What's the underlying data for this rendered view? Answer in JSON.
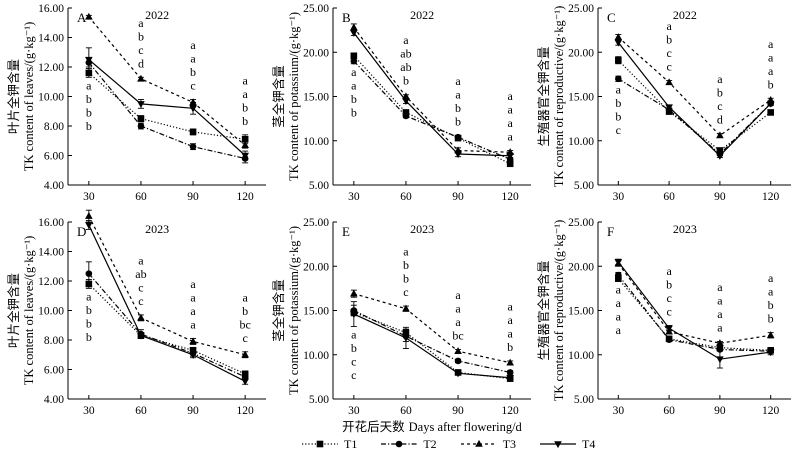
{
  "legend": {
    "items": [
      {
        "label": "T1",
        "marker": "square",
        "dash": "1,2"
      },
      {
        "label": "T2",
        "marker": "circle",
        "dash": "5,2,1,2"
      },
      {
        "label": "T3",
        "marker": "triangle-up",
        "dash": "3,3"
      },
      {
        "label": "T4",
        "marker": "triangle-down",
        "dash": ""
      }
    ]
  },
  "chart_data": [
    {
      "type": "line",
      "panel": "A",
      "title": "2022",
      "ylabel": "TK content of leaves/(g·kg⁻¹)",
      "ylabel_cn": "叶片全钾含量",
      "xlabel": "",
      "x": [
        30,
        60,
        90,
        120
      ],
      "yticks": [
        4,
        6,
        8,
        10,
        12,
        14,
        16
      ],
      "ylim": [
        4,
        16
      ],
      "series": [
        {
          "name": "T1",
          "values": [
            11.6,
            8.5,
            7.6,
            7.1
          ],
          "err": [
            0.3,
            0.2,
            0.2,
            0.3
          ]
        },
        {
          "name": "T2",
          "values": [
            12.3,
            8.0,
            6.6,
            5.8
          ],
          "err": [
            0.3,
            0.2,
            0.2,
            0.3
          ]
        },
        {
          "name": "T3",
          "values": [
            15.4,
            11.2,
            9.6,
            6.7
          ],
          "err": [
            0.1,
            0.1,
            0.2,
            0.2
          ]
        },
        {
          "name": "T4",
          "values": [
            12.5,
            9.5,
            9.2,
            6.0
          ],
          "err": [
            0.8,
            0.3,
            0.4,
            0.3
          ]
        }
      ],
      "letters": [
        [
          "a",
          "b",
          "b",
          "b"
        ],
        [
          "a",
          "b",
          "c",
          "d"
        ],
        [
          "a",
          "a",
          "b",
          "c"
        ],
        [
          "a",
          "a",
          "b",
          "b"
        ]
      ]
    },
    {
      "type": "line",
      "panel": "B",
      "title": "2022",
      "ylabel": "TK content of potassium/(g·kg⁻¹)",
      "ylabel_cn": "茎全钾含量",
      "xlabel": "",
      "x": [
        30,
        60,
        90,
        120
      ],
      "yticks": [
        5,
        10,
        15,
        20,
        25
      ],
      "ylim": [
        5,
        25
      ],
      "series": [
        {
          "name": "T1",
          "values": [
            19.6,
            13.2,
            10.3,
            7.4
          ],
          "err": [
            0.3,
            0.2,
            0.2,
            0.2
          ]
        },
        {
          "name": "T2",
          "values": [
            19.0,
            12.8,
            10.4,
            7.9
          ],
          "err": [
            0.3,
            0.2,
            0.2,
            0.2
          ]
        },
        {
          "name": "T3",
          "values": [
            22.8,
            15.0,
            8.9,
            8.7
          ],
          "err": [
            0.4,
            0.2,
            0.3,
            0.2
          ]
        },
        {
          "name": "T4",
          "values": [
            22.2,
            14.5,
            8.5,
            8.3
          ],
          "err": [
            0.3,
            0.3,
            0.3,
            0.3
          ]
        }
      ],
      "letters": [
        [
          "a",
          "a",
          "b",
          "b"
        ],
        [
          "a",
          "ab",
          "ab",
          "b"
        ],
        [
          "a",
          "a",
          "b",
          "b"
        ],
        [
          "a",
          "a",
          "a",
          "a"
        ]
      ]
    },
    {
      "type": "line",
      "panel": "C",
      "title": "2022",
      "ylabel": "TK content of reproductive/(g·kg⁻¹)",
      "ylabel_cn": "生殖器官全钾含量",
      "xlabel": "",
      "x": [
        30,
        60,
        90,
        120
      ],
      "yticks": [
        5,
        10,
        15,
        20,
        25
      ],
      "ylim": [
        5,
        25
      ],
      "series": [
        {
          "name": "T1",
          "values": [
            19.1,
            13.3,
            8.9,
            13.2
          ],
          "err": [
            0.4,
            0.3,
            0.2,
            0.2
          ]
        },
        {
          "name": "T2",
          "values": [
            17.0,
            13.5,
            8.5,
            14.2
          ],
          "err": [
            0.3,
            0.2,
            0.2,
            0.2
          ]
        },
        {
          "name": "T3",
          "values": [
            21.7,
            16.6,
            10.6,
            14.6
          ],
          "err": [
            0.3,
            0.2,
            0.2,
            0.2
          ]
        },
        {
          "name": "T4",
          "values": [
            21.1,
            13.8,
            8.3,
            14.2
          ],
          "err": [
            0.3,
            0.2,
            0.2,
            0.2
          ]
        }
      ],
      "letters": [
        [
          "a",
          "b",
          "b",
          "c"
        ],
        [
          "a",
          "b",
          "c",
          "c"
        ],
        [
          "a",
          "b",
          "c",
          "d"
        ],
        [
          "a",
          "a",
          "a",
          "b"
        ]
      ]
    },
    {
      "type": "line",
      "panel": "D",
      "title": "2023",
      "ylabel": "TK content of leaves/(g·kg⁻¹)",
      "ylabel_cn": "叶片全钾含量",
      "xlabel": "",
      "x": [
        30,
        60,
        90,
        120
      ],
      "yticks": [
        4,
        6,
        8,
        10,
        12,
        14,
        16
      ],
      "ylim": [
        4,
        16
      ],
      "series": [
        {
          "name": "T1",
          "values": [
            11.8,
            8.3,
            7.3,
            5.7
          ],
          "err": [
            0.3,
            0.2,
            0.2,
            0.2
          ]
        },
        {
          "name": "T2",
          "values": [
            12.5,
            8.4,
            7.1,
            5.5
          ],
          "err": [
            0.8,
            0.3,
            0.2,
            0.2
          ]
        },
        {
          "name": "T3",
          "values": [
            16.4,
            9.5,
            7.9,
            7.0
          ],
          "err": [
            0.4,
            0.2,
            0.2,
            0.2
          ]
        },
        {
          "name": "T4",
          "values": [
            15.8,
            8.3,
            7.0,
            5.2
          ],
          "err": [
            0.3,
            0.2,
            0.2,
            0.2
          ]
        }
      ],
      "letters": [
        [
          "a",
          "b",
          "b",
          "b"
        ],
        [
          "a",
          "ab",
          "c",
          "c"
        ],
        [
          "a",
          "a",
          "a",
          "a"
        ],
        [
          "a",
          "b",
          "bc",
          "c"
        ]
      ]
    },
    {
      "type": "line",
      "panel": "E",
      "title": "2023",
      "ylabel": "TK content of potassium/(g·kg⁻¹)",
      "ylabel_cn": "茎全钾含量",
      "xlabel": "Days after flowering/d",
      "xlabel_cn": "开花后天数",
      "x": [
        30,
        60,
        90,
        120
      ],
      "yticks": [
        5,
        10,
        15,
        20,
        25
      ],
      "ylim": [
        5,
        25
      ],
      "series": [
        {
          "name": "T1",
          "values": [
            14.8,
            12.5,
            8.0,
            7.3
          ],
          "err": [
            0.3,
            0.4,
            0.2,
            0.2
          ]
        },
        {
          "name": "T2",
          "values": [
            15.0,
            12.1,
            9.3,
            8.0
          ],
          "err": [
            0.6,
            0.6,
            0.2,
            0.2
          ]
        },
        {
          "name": "T3",
          "values": [
            16.9,
            15.2,
            10.4,
            9.1
          ],
          "err": [
            0.4,
            0.3,
            0.2,
            0.2
          ]
        },
        {
          "name": "T4",
          "values": [
            14.6,
            11.9,
            7.9,
            7.4
          ],
          "err": [
            1.4,
            1.2,
            0.2,
            0.2
          ]
        }
      ],
      "letters": [
        [
          "a",
          "b",
          "c",
          "c"
        ],
        [
          "a",
          "b",
          "b",
          "c"
        ],
        [
          "a",
          "a",
          "a",
          "bc"
        ],
        [
          "a",
          "a",
          "a",
          "b"
        ]
      ]
    },
    {
      "type": "line",
      "panel": "F",
      "title": "2023",
      "ylabel": "TK content of reproductive/(g·kg⁻¹)",
      "ylabel_cn": "生殖器官全钾含量",
      "xlabel": "",
      "x": [
        30,
        60,
        90,
        120
      ],
      "yticks": [
        5,
        10,
        15,
        20,
        25
      ],
      "ylim": [
        5,
        25
      ],
      "series": [
        {
          "name": "T1",
          "values": [
            18.6,
            11.8,
            10.8,
            10.5
          ],
          "err": [
            0.3,
            0.2,
            0.2,
            0.2
          ]
        },
        {
          "name": "T2",
          "values": [
            19.0,
            11.7,
            10.6,
            10.4
          ],
          "err": [
            0.3,
            0.2,
            0.2,
            0.2
          ]
        },
        {
          "name": "T3",
          "values": [
            20.3,
            12.6,
            11.3,
            12.2
          ],
          "err": [
            0.3,
            0.2,
            0.2,
            0.3
          ]
        },
        {
          "name": "T4",
          "values": [
            20.5,
            13.0,
            9.5,
            10.3
          ],
          "err": [
            0.3,
            0.3,
            1.0,
            0.3
          ]
        }
      ],
      "letters": [
        [
          "a",
          "a",
          "a",
          "a"
        ],
        [
          "a",
          "b",
          "c",
          "c"
        ],
        [
          "a",
          "a",
          "a",
          "a"
        ],
        [
          "a",
          "a",
          "b",
          "b"
        ]
      ]
    }
  ]
}
